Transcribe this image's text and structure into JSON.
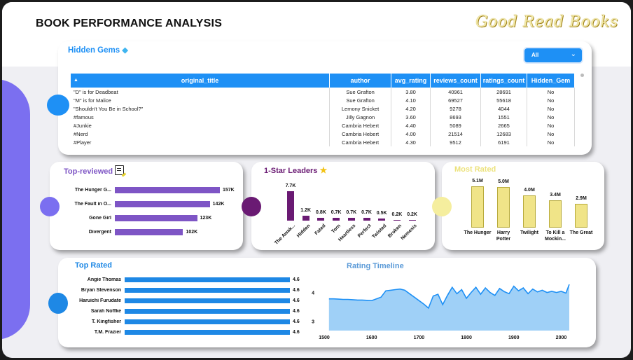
{
  "header": {
    "title": "BOOK PERFORMANCE ANALYSIS",
    "brand": "Good Read Books"
  },
  "hidden_gems": {
    "title": "Hidden Gems",
    "filter_value": "All",
    "columns": [
      "original_title",
      "author",
      "avg_rating",
      "reviews_count",
      "ratings_count",
      "Hidden_Gem"
    ],
    "rows": [
      [
        "\"D\" is for Deadbeat",
        "Sue Grafton",
        "3.80",
        "40961",
        "28691",
        "No"
      ],
      [
        "\"M\" is for Malice",
        "Sue Grafton",
        "4.10",
        "69527",
        "55618",
        "No"
      ],
      [
        "\"Shouldn't You Be in School?\"",
        "Lemony Snicket",
        "4.20",
        "9278",
        "4044",
        "No"
      ],
      [
        "#famous",
        "Jilly Gagnon",
        "3.60",
        "8693",
        "1551",
        "No"
      ],
      [
        "#Junkie",
        "Cambria Hebert",
        "4.40",
        "5089",
        "2665",
        "No"
      ],
      [
        "#Nerd",
        "Cambria Hebert",
        "4.00",
        "21514",
        "12683",
        "No"
      ],
      [
        "#Player",
        "Cambria Hebert",
        "4.30",
        "9512",
        "6191",
        "No"
      ]
    ],
    "colors": {
      "header": "#1e90f5"
    }
  },
  "top_reviewed": {
    "title": "Top-reviewed",
    "color": "#7e55c5",
    "items": [
      {
        "label": "The Hunger G...",
        "value": 157,
        "value_label": "157K"
      },
      {
        "label": "The Fault in O...",
        "value": 142,
        "value_label": "142K"
      },
      {
        "label": "Gone Girl",
        "value": 123,
        "value_label": "123K"
      },
      {
        "label": "Divergent",
        "value": 102,
        "value_label": "102K"
      }
    ]
  },
  "one_star": {
    "title": "1-Star Leaders",
    "color": "#6a1a73",
    "items": [
      {
        "label": "The Awak...",
        "value": 7.7,
        "value_label": "7.7K"
      },
      {
        "label": "Hidden",
        "value": 1.2,
        "value_label": "1.2K"
      },
      {
        "label": "Fated",
        "value": 0.8,
        "value_label": "0.8K"
      },
      {
        "label": "Torn",
        "value": 0.7,
        "value_label": "0.7K"
      },
      {
        "label": "Heartless",
        "value": 0.7,
        "value_label": "0.7K"
      },
      {
        "label": "Perfect",
        "value": 0.7,
        "value_label": "0.7K"
      },
      {
        "label": "Twisted",
        "value": 0.5,
        "value_label": "0.5K"
      },
      {
        "label": "Broken",
        "value": 0.2,
        "value_label": "0.2K"
      },
      {
        "label": "Nemesis",
        "value": 0.2,
        "value_label": "0.2K"
      }
    ]
  },
  "most_rated": {
    "title": "Most Rated",
    "color": "#f0e488",
    "items": [
      {
        "label": "The Hunger",
        "value": 5.1,
        "value_label": "5.1M"
      },
      {
        "label": "Harry Potter",
        "value": 5.0,
        "value_label": "5.0M"
      },
      {
        "label": "Twilight",
        "value": 4.0,
        "value_label": "4.0M"
      },
      {
        "label": "To Kill a Mockin...",
        "value": 3.4,
        "value_label": "3.4M"
      },
      {
        "label": "The Great",
        "value": 2.9,
        "value_label": "2.9M"
      }
    ]
  },
  "top_rated": {
    "title": "Top Rated",
    "color": "#1e88e5",
    "items": [
      {
        "label": "Angie Thomas",
        "value": 4.6,
        "value_label": "4.6"
      },
      {
        "label": "Bryan Stevenson",
        "value": 4.6,
        "value_label": "4.6"
      },
      {
        "label": "Haruichi Furudate",
        "value": 4.6,
        "value_label": "4.6"
      },
      {
        "label": "Sarah Noffke",
        "value": 4.6,
        "value_label": "4.6"
      },
      {
        "label": "T. Kingfisher",
        "value": 4.6,
        "value_label": "4.6"
      },
      {
        "label": "T.M. Frazier",
        "value": 4.6,
        "value_label": "4.6"
      }
    ]
  },
  "chart_data": {
    "type": "area",
    "title": "Rating Timeline",
    "x_ticks": [
      "1500",
      "1600",
      "1700",
      "1800",
      "1900",
      "2000"
    ],
    "y_ticks": [
      "3",
      "4"
    ],
    "xlim": [
      1500,
      2020
    ],
    "ylim": [
      2.7,
      4.4
    ],
    "color": "#1e90f5",
    "fill": "#9fd0f7",
    "x": [
      1510,
      1520,
      1530,
      1540,
      1550,
      1560,
      1570,
      1580,
      1590,
      1600,
      1610,
      1620,
      1630,
      1640,
      1650,
      1660,
      1670,
      1680,
      1690,
      1700,
      1710,
      1720,
      1730,
      1740,
      1750,
      1760,
      1770,
      1780,
      1790,
      1800,
      1810,
      1820,
      1830,
      1840,
      1850,
      1860,
      1870,
      1880,
      1890,
      1900,
      1910,
      1920,
      1930,
      1940,
      1950,
      1960,
      1970,
      1980,
      1990,
      2000,
      2010,
      2017
    ],
    "y": [
      3.8,
      3.8,
      3.79,
      3.78,
      3.78,
      3.77,
      3.76,
      3.76,
      3.75,
      3.74,
      3.8,
      3.86,
      4.08,
      4.1,
      4.12,
      4.14,
      4.1,
      3.98,
      3.86,
      3.74,
      3.62,
      3.48,
      3.9,
      3.96,
      3.6,
      3.92,
      4.2,
      3.98,
      4.12,
      3.82,
      4.02,
      4.2,
      3.96,
      4.18,
      4.02,
      3.92,
      4.16,
      4.05,
      3.98,
      4.24,
      4.08,
      4.18,
      3.98,
      4.14,
      4.04,
      4.1,
      4.02,
      4.06,
      4.02,
      4.06,
      4.0,
      4.3
    ]
  }
}
